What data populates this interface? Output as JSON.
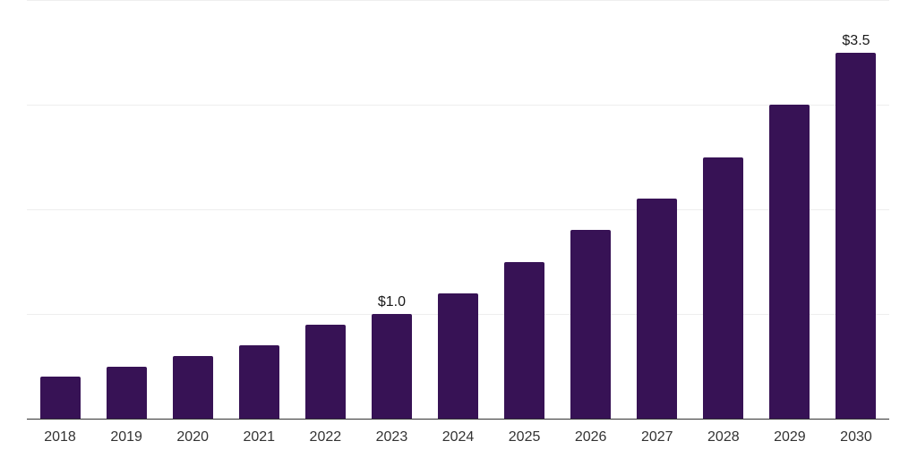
{
  "chart_data": {
    "type": "bar",
    "title": "",
    "categories": [
      "2018",
      "2019",
      "2020",
      "2021",
      "2022",
      "2023",
      "2024",
      "2025",
      "2026",
      "2027",
      "2028",
      "2029",
      "2030"
    ],
    "values": [
      0.4,
      0.5,
      0.6,
      0.7,
      0.9,
      1.0,
      1.2,
      1.5,
      1.8,
      2.1,
      2.5,
      3.0,
      3.5
    ],
    "point_labels": [
      "",
      "",
      "",
      "",
      "",
      "$1.0",
      "",
      "",
      "",
      "",
      "",
      "",
      "$3.5"
    ],
    "xlabel": "",
    "ylabel": "",
    "ylim": [
      0,
      4
    ],
    "gridline_values": [
      1,
      2,
      3,
      4
    ],
    "grid": "horizontal-only",
    "legend": "none",
    "colors": {
      "bar_fill": "#371255",
      "axis_line": "#333333",
      "gridline": "#eeeeee",
      "point_label_text": "#1a1a1a",
      "tick_label_text": "#333333",
      "background": "#ffffff"
    }
  }
}
